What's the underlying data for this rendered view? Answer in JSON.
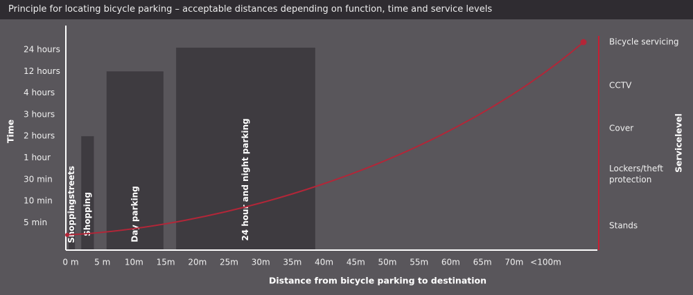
{
  "header": {
    "title": "Principle for locating bicycle parking – acceptable distances depending on function, time and service levels"
  },
  "colors": {
    "background": "#59565b",
    "header_bg": "#2f2c31",
    "bar_fill": "#3e3b40",
    "axis": "#ffffff",
    "curve": "#b32638",
    "service_line": "#c81e32"
  },
  "chart_data": {
    "type": "bar",
    "xlabel": "Distance from bicycle parking to destination",
    "ylabel": "Time",
    "y2label": "Servicelevel",
    "x_ticks": [
      "0 m",
      "5 m",
      "10m",
      "15m",
      "20m",
      "25m",
      "30m",
      "35m",
      "40m",
      "45m",
      "50m",
      "55m",
      "60m",
      "65m",
      "70m",
      "<100m"
    ],
    "y_ticks": [
      "5 min",
      "10 min",
      "30 min",
      "1 hour",
      "2 hours",
      "3 hours",
      "4 hours",
      "12 hours",
      "24 hours"
    ],
    "service_levels": [
      "Stands",
      "Lockers/theft protection",
      "Cover",
      "CCTV",
      "Bicycle servicing"
    ],
    "bars": [
      {
        "label": "Shoppingstreets",
        "x_start": 0,
        "x_end": 1,
        "time": "5 min"
      },
      {
        "label": "Shopping",
        "x_start": 2,
        "x_end": 4,
        "time": "2 hours"
      },
      {
        "label": "Day parking",
        "x_start": 6,
        "x_end": 15,
        "time": "12 hours"
      },
      {
        "label": "24 hour and night parking",
        "x_start": 17,
        "x_end": 39,
        "time": "24 hours"
      }
    ],
    "curve": {
      "description": "service level rises with distance",
      "start": {
        "x": "0 m",
        "service": "Stands"
      },
      "end": {
        "x": "<100m",
        "service": "Bicycle servicing"
      }
    },
    "grid": false
  }
}
